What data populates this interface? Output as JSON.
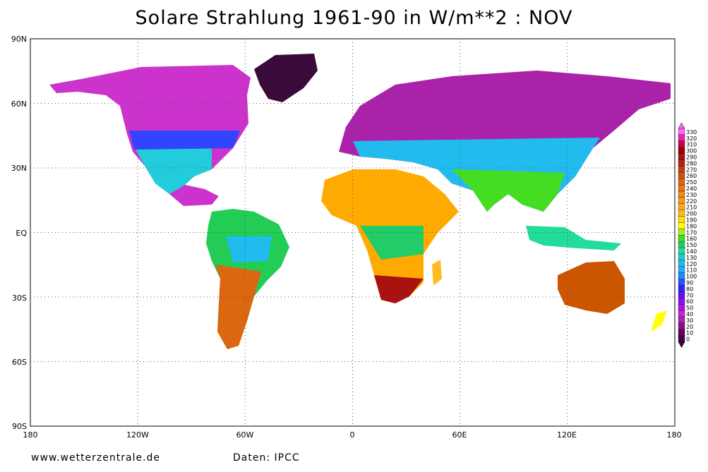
{
  "title": "Solare Strahlung 1961-90 in W/m**2 : NOV",
  "footer": {
    "source_site": "www.wetterzentrale.de",
    "data_credit": "Daten: IPCC"
  },
  "map": {
    "projection": "equirectangular",
    "lon_range": [
      -180,
      180
    ],
    "lat_range": [
      -90,
      90
    ],
    "grid": "dotted",
    "lat_ticks": [
      "90N",
      "60N",
      "30N",
      "EQ",
      "30S",
      "60S",
      "90S"
    ],
    "lon_ticks": [
      "180",
      "120W",
      "60W",
      "0",
      "60E",
      "120E",
      "180"
    ],
    "continents": [
      {
        "name": "North America",
        "color": "#cc33cc"
      },
      {
        "name": "Greenland",
        "color": "#3a0a3a"
      },
      {
        "name": "South America",
        "color": "#22cc55"
      },
      {
        "name": "Europe/Asia",
        "color": "#aa22aa"
      },
      {
        "name": "Africa",
        "color": "#ffaa00"
      },
      {
        "name": "Australia",
        "color": "#cc5500"
      }
    ]
  },
  "legend": {
    "labels": [
      "330",
      "320",
      "310",
      "300",
      "290",
      "280",
      "270",
      "260",
      "250",
      "240",
      "230",
      "220",
      "210",
      "200",
      "190",
      "180",
      "170",
      "160",
      "150",
      "140",
      "130",
      "120",
      "110",
      "100",
      "90",
      "80",
      "70",
      "60",
      "50",
      "40",
      "30",
      "20",
      "10",
      "0"
    ],
    "colors": [
      "#ff66ff",
      "#ee22aa",
      "#cc0044",
      "#990000",
      "#aa1111",
      "#bb2211",
      "#c43a1a",
      "#cc5511",
      "#dd6611",
      "#e87711",
      "#ee8811",
      "#f59918",
      "#ffaa11",
      "#ffbb22",
      "#ffdd00",
      "#ffff00",
      "#aaee22",
      "#44dd22",
      "#22cc66",
      "#22dd99",
      "#22cccc",
      "#22bbee",
      "#22aaff",
      "#2288ff",
      "#2255ff",
      "#3322ff",
      "#6611ee",
      "#8811ee",
      "#aa11ee",
      "#cc22dd",
      "#aa22bb",
      "#881188",
      "#660066",
      "#440044"
    ]
  }
}
